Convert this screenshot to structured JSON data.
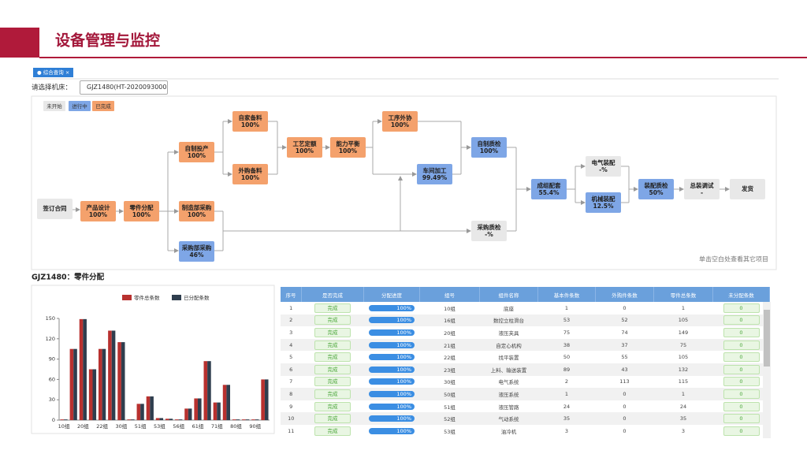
{
  "header": {
    "title": "设备管理与监控"
  },
  "tab": {
    "label": "综合查询",
    "close": "×"
  },
  "selector": {
    "label": "请选择机床：",
    "value": "GJZ1480(HT-2020093000"
  },
  "legend": [
    {
      "label": "未开始",
      "color": "#e8e8e8"
    },
    {
      "label": "进行中",
      "color": "#7ea6e6"
    },
    {
      "label": "已完成",
      "color": "#f4a16c"
    }
  ],
  "flow": {
    "nodes": [
      {
        "label": "签订合同",
        "color": "#e8e8e8"
      },
      {
        "label": "产品设计",
        "value": "100%",
        "color": "#f4a16c"
      },
      {
        "label": "零件分配",
        "value": "100%",
        "color": "#f4a16c"
      },
      {
        "label": "自制投产",
        "value": "100%",
        "color": "#f4a16c"
      },
      {
        "label": "制造部采购",
        "value": "100%",
        "color": "#f4a16c"
      },
      {
        "label": "采购部采购",
        "value": "46%",
        "color": "#7ea6e6"
      },
      {
        "label": "自家备料",
        "value": "100%",
        "color": "#f4a16c"
      },
      {
        "label": "外购备料",
        "value": "100%",
        "color": "#f4a16c"
      },
      {
        "label": "工艺定额",
        "value": "100%",
        "color": "#f4a16c"
      },
      {
        "label": "能力平衡",
        "value": "100%",
        "color": "#f4a16c"
      },
      {
        "label": "工序外协",
        "value": "100%",
        "color": "#f4a16c"
      },
      {
        "label": "车间加工",
        "value": "99.49%",
        "color": "#7ea6e6"
      },
      {
        "label": "自制质检",
        "value": "100%",
        "color": "#7ea6e6"
      },
      {
        "label": "采购质检",
        "value": "-%",
        "color": "#e8e8e8"
      },
      {
        "label": "成组配套",
        "value": "55.4%",
        "color": "#7ea6e6"
      },
      {
        "label": "电气装配",
        "value": "-%",
        "color": "#e8e8e8"
      },
      {
        "label": "机械装配",
        "value": "12.5%",
        "color": "#7ea6e6"
      },
      {
        "label": "装配质检",
        "value": "50%",
        "color": "#7ea6e6"
      },
      {
        "label": "总装调试",
        "value": "-",
        "color": "#e8e8e8"
      },
      {
        "label": "发货",
        "color": "#e8e8e8"
      }
    ],
    "hint": "单击空白处查看其它项目"
  },
  "section_title": "GJZ1480：零件分配",
  "chart_data": {
    "type": "bar",
    "grid": false,
    "categories": [
      "10组",
      null,
      "20组",
      null,
      "22组",
      null,
      "30组",
      null,
      "51组",
      null,
      "53组",
      null,
      "56组",
      null,
      "61组",
      null,
      "71组",
      null,
      "80组",
      null,
      "90组",
      null
    ],
    "series": [
      {
        "name": "零件总条数",
        "color": "#b8312f",
        "values": [
          1,
          105,
          149,
          75,
          105,
          132,
          115,
          1,
          24,
          35,
          3,
          2,
          1,
          17,
          32,
          87,
          26,
          52,
          1,
          1,
          1,
          60
        ]
      },
      {
        "name": "已分配条数",
        "color": "#2f3e4e",
        "values": [
          1,
          105,
          149,
          75,
          105,
          132,
          115,
          1,
          24,
          35,
          3,
          2,
          1,
          17,
          32,
          87,
          26,
          52,
          1,
          1,
          1,
          60
        ]
      }
    ],
    "ylim": [
      0,
      150
    ],
    "yticks": [
      0,
      30,
      60,
      90,
      120,
      150
    ]
  },
  "table": {
    "columns": [
      "序号",
      "是否完成",
      "分配进度",
      "组号",
      "组件名称",
      "基本件条数",
      "外购件条数",
      "零件总条数",
      "未分配条数"
    ],
    "rows": [
      [
        "1",
        "完成",
        "100%",
        "10组",
        "底座",
        "1",
        "0",
        "1",
        "0"
      ],
      [
        "2",
        "完成",
        "100%",
        "16组",
        "数控立柱滑台",
        "53",
        "52",
        "105",
        "0"
      ],
      [
        "3",
        "完成",
        "100%",
        "20组",
        "液压夹具",
        "75",
        "74",
        "149",
        "0"
      ],
      [
        "4",
        "完成",
        "100%",
        "21组",
        "自定心机构",
        "38",
        "37",
        "75",
        "0"
      ],
      [
        "5",
        "完成",
        "100%",
        "22组",
        "找平装置",
        "50",
        "55",
        "105",
        "0"
      ],
      [
        "6",
        "完成",
        "100%",
        "23组",
        "上料、输送装置",
        "89",
        "43",
        "132",
        "0"
      ],
      [
        "7",
        "完成",
        "100%",
        "30组",
        "电气系统",
        "2",
        "113",
        "115",
        "0"
      ],
      [
        "8",
        "完成",
        "100%",
        "50组",
        "液压系统",
        "1",
        "0",
        "1",
        "0"
      ],
      [
        "9",
        "完成",
        "100%",
        "51组",
        "液压管路",
        "24",
        "0",
        "24",
        "0"
      ],
      [
        "10",
        "完成",
        "100%",
        "52组",
        "气动系统",
        "35",
        "0",
        "35",
        "0"
      ],
      [
        "11",
        "完成",
        "100%",
        "53组",
        "油冷机",
        "3",
        "0",
        "3",
        "0"
      ]
    ]
  }
}
